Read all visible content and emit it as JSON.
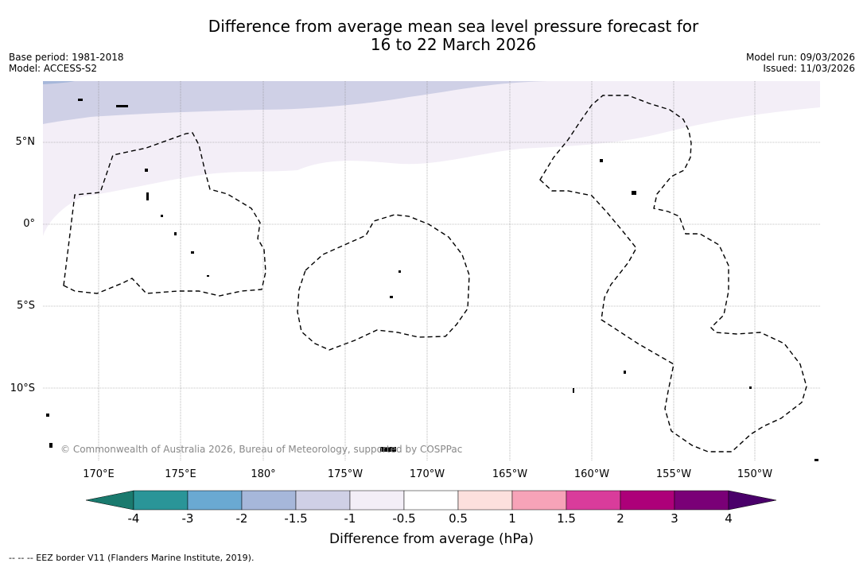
{
  "header": {
    "title_line1": "Difference from average mean sea level pressure forecast for",
    "title_line2": "16 to 22 March 2026",
    "base_period": "Base period: 1981-2018",
    "model": "Model: ACCESS-S2",
    "model_run": "Model run: 09/03/2026",
    "issued": "Issued: 11/03/2026"
  },
  "map": {
    "lat_labels": [
      "5°N",
      "0°",
      "5°S",
      "10°S"
    ],
    "lon_labels": [
      "170°E",
      "175°E",
      "180°",
      "175°W",
      "170°W",
      "165°W",
      "160°W",
      "155°W",
      "150°W"
    ],
    "copyright": "© Commonwealth of Australia 2026, Bureau of Meteorology, supported by COSPPac"
  },
  "colorbar": {
    "ticks": [
      "-4",
      "-3",
      "-2",
      "-1.5",
      "-1",
      "-0.5",
      "0.5",
      "1",
      "1.5",
      "2",
      "3",
      "4"
    ],
    "colors": [
      "#1a7a6e",
      "#2a9598",
      "#6aa9d2",
      "#a6b7da",
      "#cfd0e6",
      "#f3eef7",
      "#ffffff",
      "#fde0dd",
      "#f7a3b8",
      "#d93c9b",
      "#ad0079",
      "#7a0077",
      "#4a006a"
    ],
    "label": "Difference from average (hPa)"
  },
  "legend": {
    "eez_note": "--  --  -- EEZ border V11 (Flanders Marine Institute, 2019)."
  }
}
